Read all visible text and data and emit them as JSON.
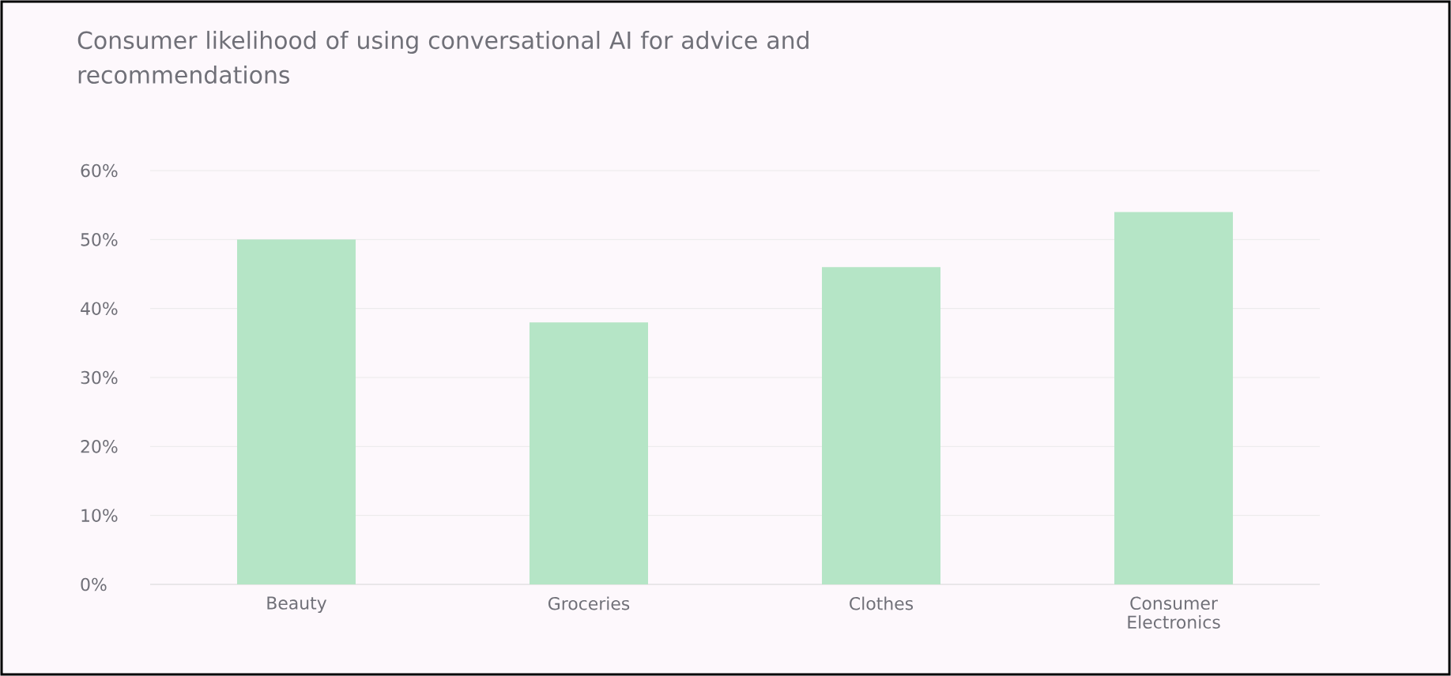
{
  "chart_data": {
    "type": "bar",
    "title": "Consumer likelihood of using conversational AI for advice and recommendations",
    "categories": [
      "Beauty",
      "Groceries",
      "Clothes",
      "Consumer Electronics"
    ],
    "values": [
      50,
      38,
      46,
      54
    ],
    "color": "#b5e5c6",
    "ylim": [
      0,
      60
    ],
    "yticks": [
      {
        "value": 0,
        "label": "0%"
      },
      {
        "value": 10,
        "label": "10%"
      },
      {
        "value": 20,
        "label": "20%"
      },
      {
        "value": 30,
        "label": "30%"
      },
      {
        "value": 40,
        "label": "40%"
      },
      {
        "value": 50,
        "label": "50%"
      },
      {
        "value": 60,
        "label": "60%"
      }
    ],
    "grid": "y"
  }
}
